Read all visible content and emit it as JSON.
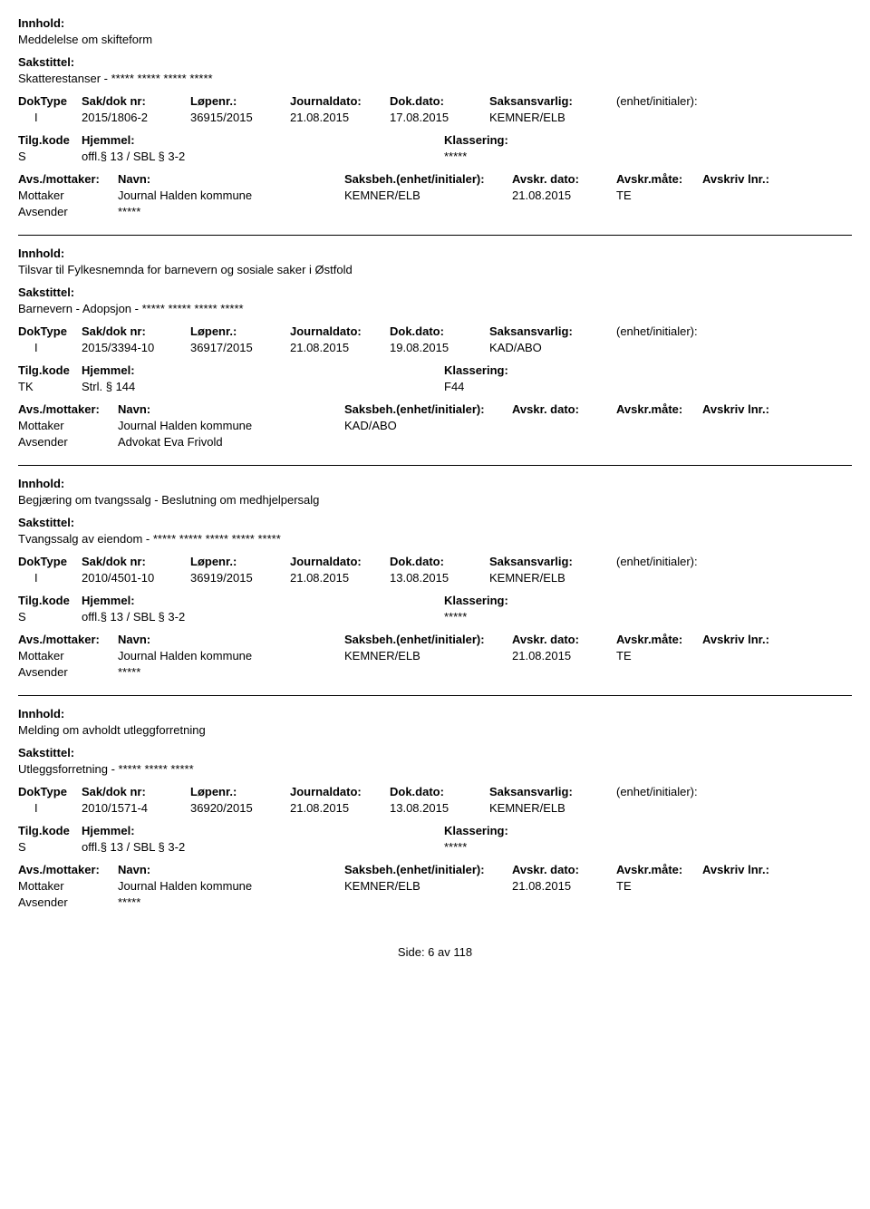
{
  "labels": {
    "innhold": "Innhold:",
    "sakstittel": "Sakstittel:",
    "doktype": "DokType",
    "sakdok": "Sak/dok nr:",
    "lopenr": "Løpenr.:",
    "journaldato": "Journaldato:",
    "dokdato": "Dok.dato:",
    "saksansvarlig": "Saksansvarlig:",
    "enhet": "(enhet/initialer):",
    "tilgkode": "Tilg.kode",
    "hjemmel": "Hjemmel:",
    "klassering": "Klassering:",
    "avsmottaker": "Avs./mottaker:",
    "navn": "Navn:",
    "saksbeh": "Saksbeh.(enhet/initialer):",
    "avskrdato": "Avskr. dato:",
    "avskrmate": "Avskr.måte:",
    "avskrivlnr": "Avskriv lnr.:",
    "mottaker": "Mottaker",
    "avsender": "Avsender"
  },
  "entries": [
    {
      "innhold": "Meddelelse om skifteform",
      "sakstittel": "Skatterestanser - ***** ***** ***** *****",
      "doktype": "I",
      "sakdok": "2015/1806-2",
      "lopenr": "36915/2015",
      "journaldato": "21.08.2015",
      "dokdato": "17.08.2015",
      "saksansvarlig": "KEMNER/ELB",
      "enhet": "",
      "tilgkode": "S",
      "hjemmel": "offl.§ 13 / SBL § 3-2",
      "klassering": "*****",
      "parties": [
        {
          "role": "Mottaker",
          "navn": "Journal Halden kommune",
          "saksbeh": "KEMNER/ELB",
          "avskrdato": "21.08.2015",
          "avskrmate": "TE"
        },
        {
          "role": "Avsender",
          "navn": "*****",
          "saksbeh": "",
          "avskrdato": "",
          "avskrmate": ""
        }
      ]
    },
    {
      "innhold": "Tilsvar til Fylkesnemnda for barnevern og sosiale saker i Østfold",
      "sakstittel": "Barnevern - Adopsjon - ***** ***** ***** *****",
      "doktype": "I",
      "sakdok": "2015/3394-10",
      "lopenr": "36917/2015",
      "journaldato": "21.08.2015",
      "dokdato": "19.08.2015",
      "saksansvarlig": "KAD/ABO",
      "enhet": "",
      "tilgkode": "TK",
      "hjemmel": "Strl. § 144",
      "klassering": "F44",
      "parties": [
        {
          "role": "Mottaker",
          "navn": "Journal Halden kommune",
          "saksbeh": "KAD/ABO",
          "avskrdato": "",
          "avskrmate": ""
        },
        {
          "role": "Avsender",
          "navn": "Advokat Eva Frivold",
          "saksbeh": "",
          "avskrdato": "",
          "avskrmate": ""
        }
      ]
    },
    {
      "innhold": "Begjæring om tvangssalg -  Beslutning om medhjelpersalg",
      "sakstittel": "Tvangssalg av eiendom - ***** ***** ***** ***** *****",
      "doktype": "I",
      "sakdok": "2010/4501-10",
      "lopenr": "36919/2015",
      "journaldato": "21.08.2015",
      "dokdato": "13.08.2015",
      "saksansvarlig": "KEMNER/ELB",
      "enhet": "",
      "tilgkode": "S",
      "hjemmel": "offl.§ 13 / SBL § 3-2",
      "klassering": "*****",
      "parties": [
        {
          "role": "Mottaker",
          "navn": "Journal Halden kommune",
          "saksbeh": "KEMNER/ELB",
          "avskrdato": "21.08.2015",
          "avskrmate": "TE"
        },
        {
          "role": "Avsender",
          "navn": "*****",
          "saksbeh": "",
          "avskrdato": "",
          "avskrmate": ""
        }
      ]
    },
    {
      "innhold": "Melding om avholdt utleggforretning",
      "sakstittel": "Utleggsforretning - ***** ***** *****",
      "doktype": "I",
      "sakdok": "2010/1571-4",
      "lopenr": "36920/2015",
      "journaldato": "21.08.2015",
      "dokdato": "13.08.2015",
      "saksansvarlig": "KEMNER/ELB",
      "enhet": "",
      "tilgkode": "S",
      "hjemmel": "offl.§ 13 / SBL § 3-2",
      "klassering": "*****",
      "parties": [
        {
          "role": "Mottaker",
          "navn": "Journal Halden kommune",
          "saksbeh": "KEMNER/ELB",
          "avskrdato": "21.08.2015",
          "avskrmate": "TE"
        },
        {
          "role": "Avsender",
          "navn": "*****",
          "saksbeh": "",
          "avskrdato": "",
          "avskrmate": ""
        }
      ]
    }
  ],
  "footer": "Side: 6 av 118"
}
